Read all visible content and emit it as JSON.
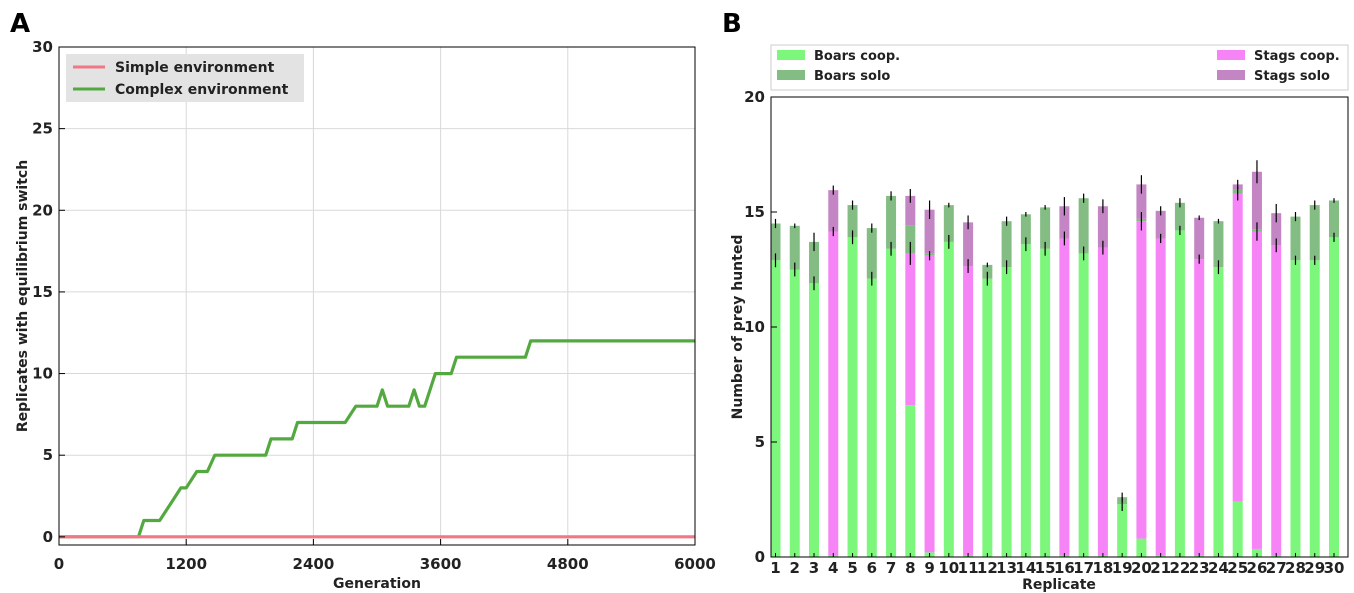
{
  "panels": {
    "a": "A",
    "b": "B"
  },
  "colors": {
    "simple": "#f07786",
    "complex": "#53a93f",
    "boars_coop": "#7cf77c",
    "boars_solo": "#84bd84",
    "stags_coop": "#f784f7",
    "stags_solo": "#c385c3"
  },
  "chart_data": [
    {
      "type": "line",
      "xlabel": "Generation",
      "ylabel": "Replicates with equilibrium switch",
      "xlim": [
        0,
        6000
      ],
      "ylim": [
        -0.5,
        30
      ],
      "xticks": [
        "0",
        "1200",
        "2400",
        "3600",
        "4800",
        "6000"
      ],
      "yticks": [
        "0",
        "5",
        "10",
        "15",
        "20",
        "25",
        "30"
      ],
      "grid": true,
      "legend_position": "top-left",
      "series": [
        {
          "name": "Simple environment",
          "x": [
            0,
            6000
          ],
          "y": [
            0,
            0
          ]
        },
        {
          "name": "Complex environment",
          "x": [
            0,
            750,
            800,
            950,
            1050,
            1150,
            1200,
            1300,
            1400,
            1470,
            1550,
            1950,
            2000,
            2200,
            2250,
            2700,
            2800,
            3000,
            3050,
            3100,
            3300,
            3350,
            3400,
            3450,
            3550,
            3700,
            3750,
            4400,
            4450,
            6000
          ],
          "y": [
            0,
            0,
            1,
            1,
            2,
            3,
            3,
            4,
            4,
            5,
            5,
            5,
            6,
            6,
            7,
            7,
            8,
            8,
            9,
            8,
            8,
            9,
            8,
            8,
            10,
            10,
            11,
            11,
            12,
            12
          ]
        }
      ]
    },
    {
      "type": "bar",
      "stacked": true,
      "xlabel": "Replicate",
      "ylabel": "Number of prey hunted",
      "ylim": [
        0,
        20
      ],
      "yticks": [
        "0",
        "5",
        "10",
        "15",
        "20"
      ],
      "legend_position": "top",
      "categories": [
        "1",
        "2",
        "3",
        "4",
        "5",
        "6",
        "7",
        "8",
        "9",
        "10",
        "11",
        "12",
        "13",
        "14",
        "15",
        "16",
        "17",
        "18",
        "19",
        "20",
        "21",
        "22",
        "23",
        "24",
        "25",
        "26",
        "27",
        "28",
        "29",
        "30"
      ],
      "series": [
        {
          "name": "Boars coop.",
          "values": [
            12.9,
            12.5,
            11.9,
            0.05,
            13.9,
            12.1,
            13.4,
            6.6,
            0.2,
            13.7,
            0.05,
            12.1,
            12.6,
            13.6,
            13.4,
            0.05,
            13.2,
            0.05,
            2.3,
            0.8,
            0.05,
            14.2,
            0.05,
            12.6,
            2.4,
            0.35,
            0.05,
            12.9,
            12.9,
            13.9
          ]
        },
        {
          "name": "Boars solo",
          "values": [
            1.6,
            1.9,
            1.8,
            0,
            1.4,
            2.2,
            2.3,
            1.2,
            0.1,
            1.6,
            0,
            0.6,
            2.0,
            1.3,
            1.8,
            0,
            2.4,
            0,
            0.3,
            0.1,
            0,
            1.2,
            0,
            2.0,
            0.2,
            0.1,
            0,
            1.9,
            2.4,
            1.6
          ]
        },
        {
          "name": "Stags coop.",
          "values": [
            0,
            0,
            0,
            14.1,
            0,
            0,
            0,
            6.6,
            12.9,
            0,
            12.6,
            0,
            0,
            0,
            0,
            13.8,
            0,
            13.4,
            0,
            13.8,
            13.8,
            0,
            12.9,
            0,
            13.4,
            13.8,
            13.5,
            0,
            0,
            0
          ]
        },
        {
          "name": "Stags solo",
          "values": [
            0,
            0,
            0,
            1.8,
            0,
            0,
            0,
            1.3,
            1.9,
            0,
            1.9,
            0,
            0,
            0,
            0,
            1.4,
            0,
            1.8,
            0,
            1.5,
            1.2,
            0,
            1.8,
            0,
            0.2,
            2.5,
            1.4,
            0,
            0,
            0
          ]
        }
      ],
      "error_bars": {
        "coop_top": [
          0.3,
          0.3,
          0.3,
          0.2,
          0.3,
          0.3,
          0.3,
          0.5,
          0.2,
          0.3,
          0.3,
          0.3,
          0.3,
          0.3,
          0.3,
          0.3,
          0.3,
          0.3,
          0.3,
          0.4,
          0.2,
          0.2,
          0.2,
          0.3,
          0.3,
          0.4,
          0.3,
          0.2,
          0.2,
          0.2
        ],
        "total": [
          0.2,
          0.1,
          0.4,
          0.2,
          0.2,
          0.2,
          0.2,
          0.3,
          0.4,
          0.1,
          0.3,
          0.1,
          0.2,
          0.1,
          0.1,
          0.4,
          0.2,
          0.3,
          0.2,
          0.4,
          0.2,
          0.2,
          0.1,
          0.1,
          0.2,
          0.5,
          0.4,
          0.2,
          0.2,
          0.1
        ]
      }
    }
  ]
}
